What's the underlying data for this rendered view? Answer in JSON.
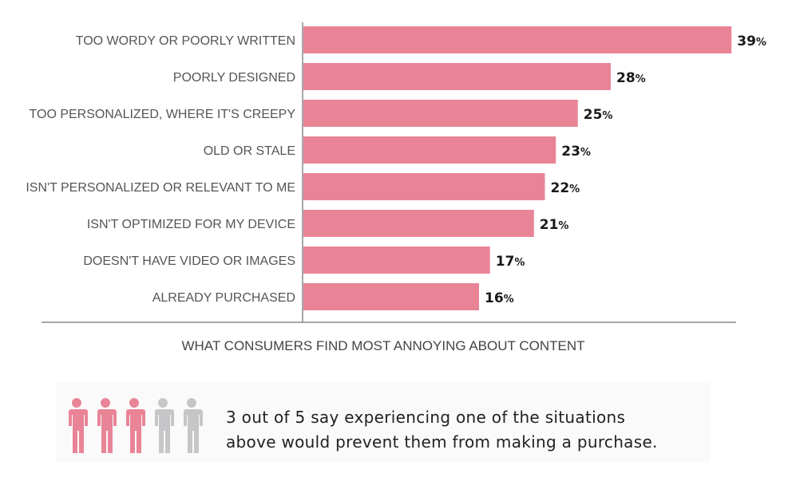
{
  "chart_data": {
    "type": "bar",
    "orientation": "horizontal",
    "categories": [
      "TOO WORDY OR POORLY WRITTEN",
      "POORLY DESIGNED",
      "TOO PERSONALIZED, WHERE IT'S CREEPY",
      "OLD OR STALE",
      "ISN'T PERSONALIZED OR RELEVANT TO ME",
      "ISN'T OPTIMIZED FOR MY DEVICE",
      "DOESN'T HAVE VIDEO OR IMAGES",
      "ALREADY PURCHASED"
    ],
    "values": [
      39,
      28,
      25,
      23,
      22,
      21,
      17,
      16
    ],
    "value_suffix": "%",
    "xlabel": "WHAT CONSUMERS FIND MOST ANNOYING ABOUT CONTENT",
    "ylabel": "",
    "xlim": [
      0,
      40
    ],
    "grid": false,
    "bar_color": "#e98497"
  },
  "footer": {
    "people_total": 5,
    "people_highlighted": 3,
    "highlight_color": "#e98497",
    "muted_color": "#c6c6c8",
    "icon": "person-icon",
    "line1": "3 out of 5 say experiencing one of the situations",
    "line2": "above would prevent them from making a purchase."
  }
}
